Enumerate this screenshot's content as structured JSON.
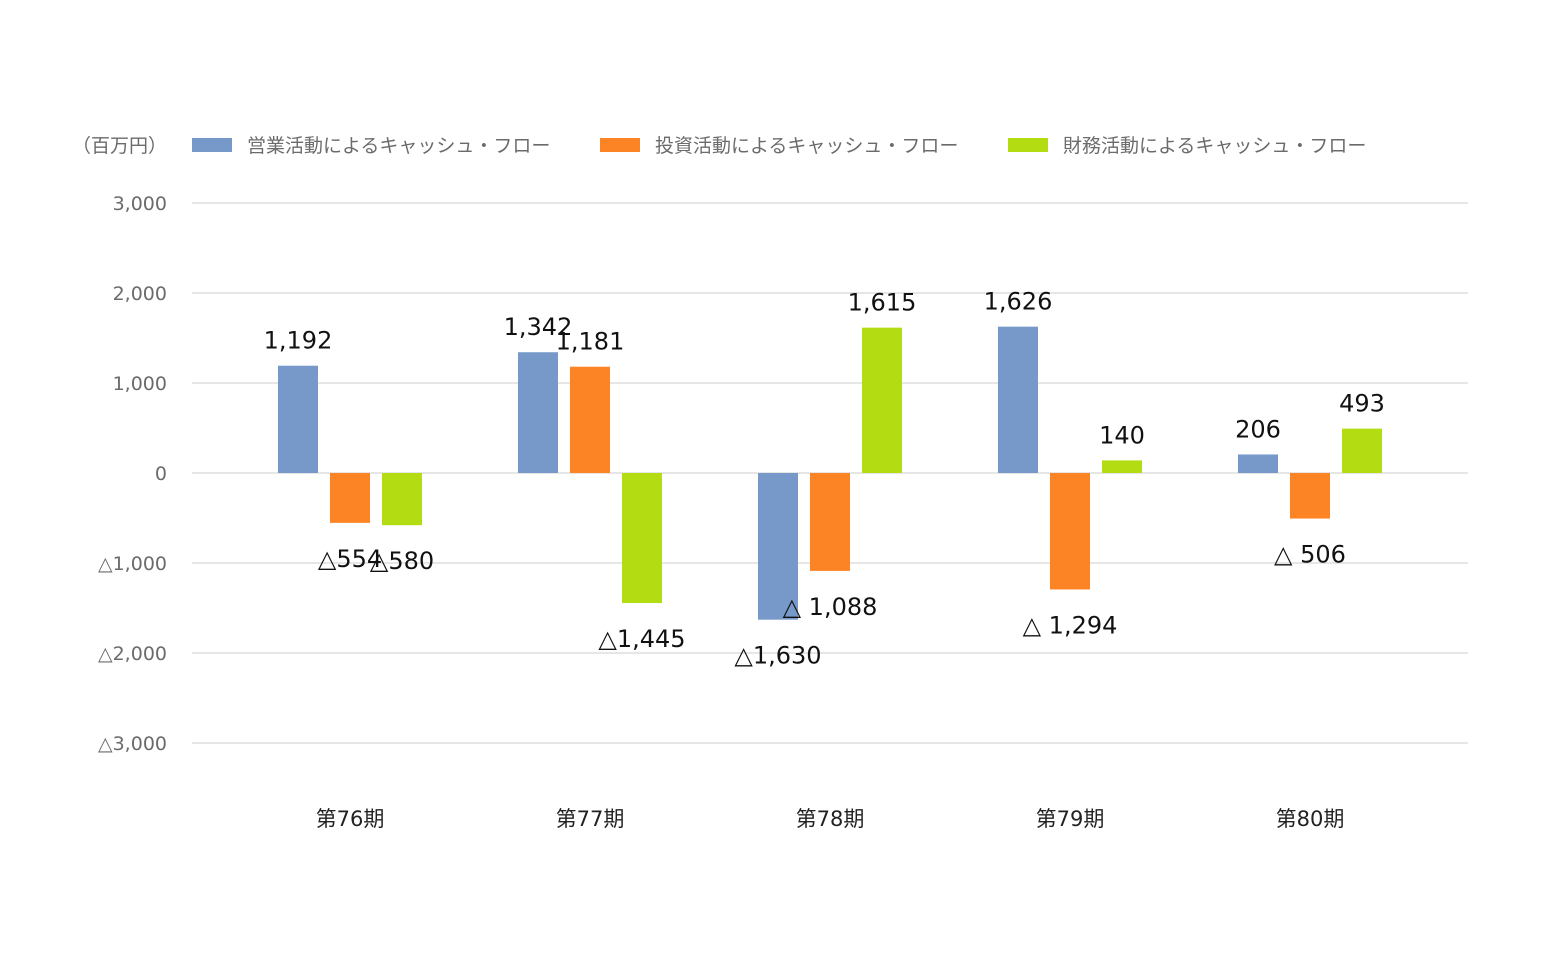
{
  "chart_data": {
    "type": "bar",
    "unit_label": "（百万円）",
    "categories": [
      "第76期",
      "第77期",
      "第78期",
      "第79期",
      "第80期"
    ],
    "series": [
      {
        "name": "営業活動によるキャッシュ・フロー",
        "color": "#7799c9",
        "values": [
          1192,
          1342,
          -1630,
          1626,
          206
        ],
        "labels": [
          "1,192",
          "1,342",
          "△1,630",
          "1,626",
          "206"
        ]
      },
      {
        "name": "投資活動によるキャッシュ・フロー",
        "color": "#fd8424",
        "values": [
          -554,
          1181,
          -1088,
          -1294,
          -506
        ],
        "labels": [
          "△554",
          "1,181",
          "△ 1,088",
          "△ 1,294",
          "△ 506"
        ]
      },
      {
        "name": "財務活動によるキャッシュ・フロー",
        "color": "#b3dc12",
        "values": [
          -580,
          -1445,
          1615,
          140,
          493
        ],
        "labels": [
          "△580",
          "△1,445",
          "1,615",
          "140",
          "493"
        ]
      }
    ],
    "yticks": [
      3000,
      2000,
      1000,
      0,
      -1000,
      -2000,
      -3000
    ],
    "ytick_labels": [
      "3,000",
      "2,000",
      "1,000",
      "0",
      "△1,000",
      "△2,000",
      "△3,000"
    ],
    "ylim": [
      -3000,
      3000
    ],
    "grid": true,
    "legend_position": "top-left"
  }
}
